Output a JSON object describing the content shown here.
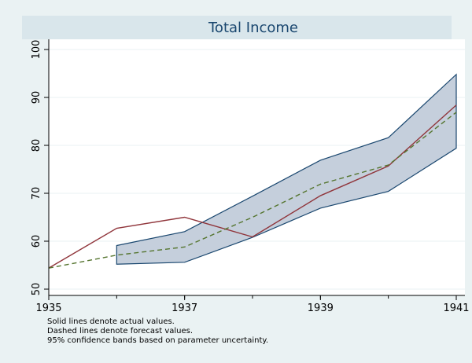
{
  "chart_data": {
    "type": "line",
    "title": "Total Income",
    "x": [
      1935,
      1936,
      1937,
      1938,
      1939,
      1940,
      1941
    ],
    "x_ticks": [
      "1935",
      "1937",
      "1939",
      "1941"
    ],
    "y_ticks": [
      "50",
      "60",
      "70",
      "80",
      "90",
      "100"
    ],
    "xlim": [
      1935,
      1941
    ],
    "ylim": [
      50,
      100
    ],
    "grid": "horizontal",
    "series": [
      {
        "role": "actual",
        "style": "solid",
        "color": "#90353b",
        "values": [
          54.4,
          62.7,
          65.0,
          60.9,
          69.5,
          75.7,
          88.4
        ]
      },
      {
        "role": "forecast",
        "style": "dashed",
        "color": "#55752f",
        "values": [
          54.4,
          57.1,
          58.8,
          65.0,
          71.9,
          75.9,
          86.9
        ]
      }
    ],
    "confidence_band": {
      "x": [
        1936,
        1937,
        1938,
        1939,
        1940,
        1941
      ],
      "upper": [
        59.1,
        62.0,
        69.4,
        76.9,
        81.6,
        94.8
      ],
      "lower": [
        55.2,
        55.6,
        60.8,
        66.9,
        70.4,
        79.4
      ],
      "color": "#1a476f"
    },
    "notes": [
      "Solid lines denote actual values.",
      "Dashed lines denote forecast values.",
      "95% confidence bands based on parameter uncertainty."
    ]
  }
}
